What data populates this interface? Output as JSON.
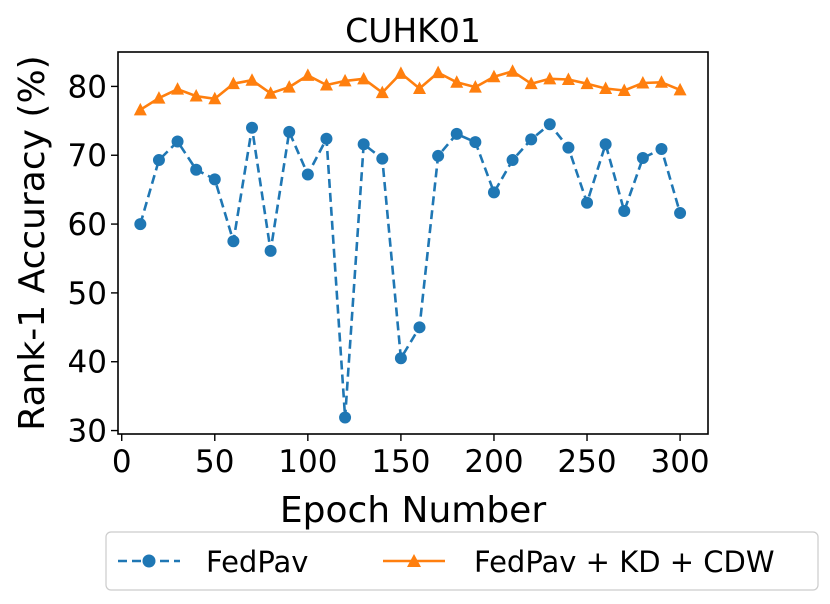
{
  "chart_data": {
    "type": "line",
    "title": "CUHK01",
    "xlabel": "Epoch Number",
    "ylabel": "Rank-1 Accuracy (%)",
    "xlim": [
      -2,
      315
    ],
    "ylim": [
      29.5,
      85
    ],
    "xticks": [
      0,
      50,
      100,
      150,
      200,
      250,
      300
    ],
    "xtick_labels": [
      "0",
      "50",
      "100",
      "150",
      "200",
      "250",
      "300"
    ],
    "yticks": [
      30,
      40,
      50,
      60,
      70,
      80
    ],
    "ytick_labels": [
      "30",
      "40",
      "50",
      "60",
      "70",
      "80"
    ],
    "grid": false,
    "legend_position": "bottom-center-outside",
    "x": [
      10,
      20,
      30,
      40,
      50,
      60,
      70,
      80,
      90,
      100,
      110,
      120,
      130,
      140,
      150,
      160,
      170,
      180,
      190,
      200,
      210,
      220,
      230,
      240,
      250,
      260,
      270,
      280,
      290,
      300
    ],
    "series": [
      {
        "name": "FedPav",
        "color": "#1f77b4",
        "linestyle": "dashed",
        "marker": "circle",
        "values": [
          60.0,
          69.3,
          72.0,
          67.9,
          66.5,
          57.5,
          74.0,
          56.1,
          73.4,
          67.2,
          72.4,
          31.9,
          71.6,
          69.5,
          40.5,
          45.0,
          69.9,
          73.1,
          71.9,
          64.6,
          69.3,
          72.3,
          74.5,
          71.1,
          63.1,
          71.6,
          61.9,
          69.6,
          70.9,
          61.6
        ]
      },
      {
        "name": "FedPav + KD + CDW",
        "color": "#ff7f0e",
        "linestyle": "solid",
        "marker": "triangle",
        "values": [
          76.6,
          78.3,
          79.6,
          78.6,
          78.2,
          80.4,
          80.9,
          79.0,
          79.9,
          81.6,
          80.2,
          80.8,
          81.1,
          79.1,
          81.9,
          79.7,
          82.0,
          80.6,
          79.9,
          81.4,
          82.2,
          80.4,
          81.1,
          81.0,
          80.4,
          79.7,
          79.4,
          80.5,
          80.6,
          79.5
        ]
      }
    ]
  }
}
